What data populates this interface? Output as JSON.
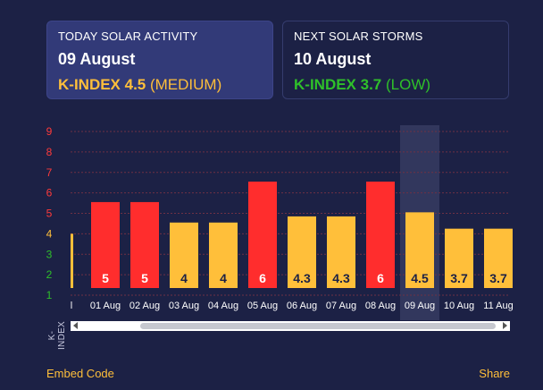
{
  "today": {
    "label": "TODAY SOLAR ACTIVITY",
    "date": "09 August",
    "k_index_label": "K-INDEX 4.5",
    "level": "(MEDIUM)",
    "color": "#ffbf3a"
  },
  "next": {
    "label": "NEXT SOLAR STORMS",
    "date": "10 August",
    "k_index_label": "K-INDEX 3.7",
    "level": "(LOW)",
    "color": "#2fc02a"
  },
  "chart_data": {
    "type": "bar",
    "categories": [
      "01 Aug",
      "02 Aug",
      "03 Aug",
      "04 Aug",
      "05 Aug",
      "06 Aug",
      "07 Aug",
      "08 Aug",
      "09 Aug",
      "10 Aug",
      "11 Aug"
    ],
    "values": [
      5,
      5,
      4,
      4,
      6,
      4.3,
      4.3,
      6,
      4.5,
      3.7,
      3.7
    ],
    "data_labels": [
      "5",
      "5",
      "4",
      "4",
      "6",
      "4.3",
      "4.3",
      "6",
      "4.5",
      "3.7",
      "3.7"
    ],
    "partial_left_label": "l",
    "partial_left_value": 4,
    "highlighted_category": "09 Aug",
    "ylabel": "K-INDEX",
    "yticks": [
      1,
      2,
      3,
      4,
      5,
      6,
      7,
      8,
      9
    ],
    "ylim": [
      1,
      9
    ],
    "grid": true,
    "colors": {
      "high": "#ff2d2d",
      "medium": "#ffbf3a",
      "tick_low": "#2fc02a",
      "tick_medium": "#ffbf3a",
      "tick_high": "#ff3a3a",
      "data_label_dark": "#1c2145",
      "data_label_light": "#ffffff"
    }
  },
  "footer": {
    "embed_label": "Embed Code",
    "share_label": "Share"
  }
}
